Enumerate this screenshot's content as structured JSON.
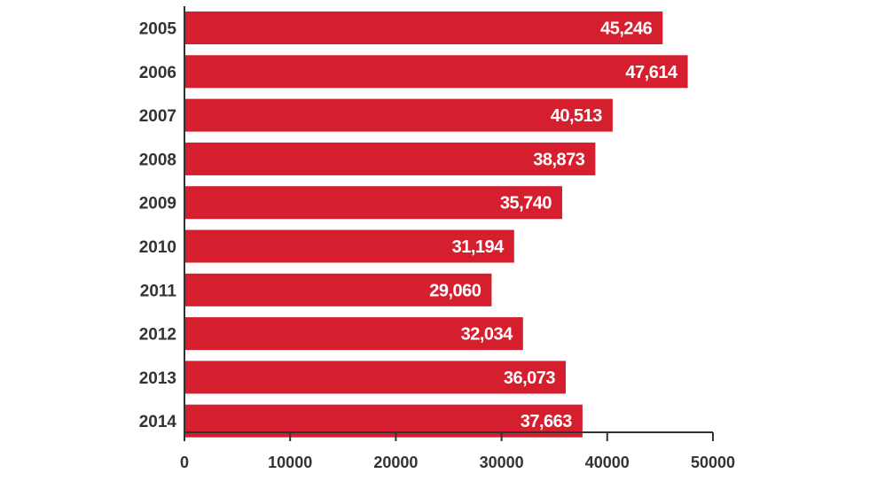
{
  "chart_data": {
    "type": "bar",
    "orientation": "horizontal",
    "categories": [
      "2005",
      "2006",
      "2007",
      "2008",
      "2009",
      "2010",
      "2011",
      "2012",
      "2013",
      "2014"
    ],
    "values": [
      45246,
      47614,
      40513,
      38873,
      35740,
      31194,
      29060,
      32034,
      36073,
      37663
    ],
    "value_labels": [
      "45,246",
      "47,614",
      "40,513",
      "38,873",
      "35,740",
      "31,194",
      "29,060",
      "32,034",
      "36,073",
      "37,663"
    ],
    "xlim": [
      0,
      50000
    ],
    "xticks": [
      0,
      10000,
      20000,
      30000,
      40000,
      50000
    ],
    "xtick_labels": [
      "0",
      "10000",
      "20000",
      "30000",
      "40000",
      "50000"
    ],
    "title": "",
    "xlabel": "",
    "ylabel": "",
    "grid": false,
    "bar_color": "#d51f2e",
    "label_color": "#ffffff"
  }
}
